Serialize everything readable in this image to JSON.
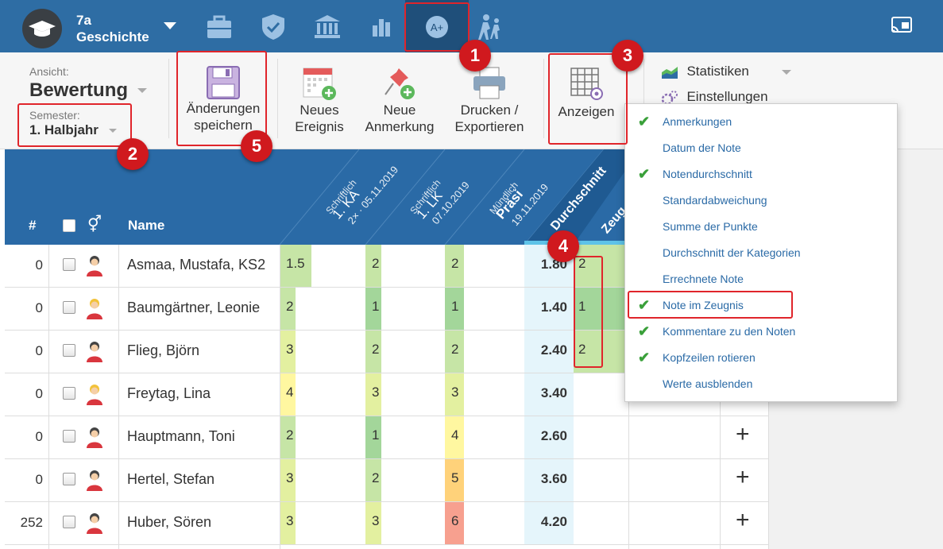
{
  "app": {
    "class_code": "7a",
    "subject": "Geschichte"
  },
  "nav_icons": [
    "briefcase-icon",
    "shield-icon",
    "bank-icon",
    "bar-chart-icon",
    "grade-icon",
    "walking-people-icon",
    "cast-icon"
  ],
  "toolbar": {
    "view_label": "Ansicht:",
    "view_value": "Bewertung",
    "semester_label": "Semester:",
    "semester_value": "1. Halbjahr",
    "save_line1": "Änderungen",
    "save_line2": "speichern",
    "new_event_line1": "Neues",
    "new_event_line2": "Ereignis",
    "new_note_line1": "Neue",
    "new_note_line2": "Anmerkung",
    "print_line1": "Drucken /",
    "print_line2": "Exportieren",
    "show_label": "Anzeigen",
    "statistics_label": "Statistiken",
    "settings_label": "Einstellungen"
  },
  "table": {
    "header": {
      "hash": "#",
      "gender": "⚥",
      "name": "Name",
      "col1_type": "Schriftlich",
      "col1_title": "1. KA",
      "col1_sub": "2× · 05.11.2019",
      "col2_type": "Schriftlich",
      "col2_title": "1. LK",
      "col2_sub": "07.10.2019",
      "col3_type": "Mündlich",
      "col3_title": "Präsi",
      "col3_sub": "19.11.2019",
      "avg": "Durchschnitt",
      "zeugnis": "Zeug"
    },
    "rows": [
      {
        "num": "0",
        "name": "Asmaa, Mustafa, KS2",
        "g1": "1.5",
        "g2": "2",
        "g3": "2",
        "avg": "1.80",
        "zeugnis": "2",
        "gender": "male"
      },
      {
        "num": "0",
        "name": "Baumgärtner, Leonie",
        "g1": "2",
        "g2": "1",
        "g3": "1",
        "avg": "1.40",
        "zeugnis": "1",
        "gender": "female"
      },
      {
        "num": "0",
        "name": "Flieg, Björn",
        "g1": "3",
        "g2": "2",
        "g3": "2",
        "avg": "2.40",
        "zeugnis": "2",
        "gender": "male"
      },
      {
        "num": "0",
        "name": "Freytag, Lina",
        "g1": "4",
        "g2": "3",
        "g3": "3",
        "avg": "3.40",
        "zeugnis": "",
        "gender": "female"
      },
      {
        "num": "0",
        "name": "Hauptmann, Toni",
        "g1": "2",
        "g2": "1",
        "g3": "4",
        "avg": "2.60",
        "zeugnis": "",
        "gender": "male"
      },
      {
        "num": "0",
        "name": "Hertel, Stefan",
        "g1": "3",
        "g2": "2",
        "g3": "5",
        "avg": "3.60",
        "zeugnis": "",
        "gender": "male"
      },
      {
        "num": "252",
        "name": "Huber, Sören",
        "g1": "3",
        "g2": "3",
        "g3": "6",
        "avg": "4.20",
        "zeugnis": "",
        "gender": "male"
      }
    ],
    "add_symbol": "+"
  },
  "dropdown": {
    "items": [
      {
        "label": "Anmerkungen",
        "checked": true
      },
      {
        "label": "Datum der Note",
        "checked": false
      },
      {
        "label": "Notendurchschnitt",
        "checked": true
      },
      {
        "label": "Standardabweichung",
        "checked": false
      },
      {
        "label": "Summe der Punkte",
        "checked": false
      },
      {
        "label": "Durchschnitt der Kategorien",
        "checked": false
      },
      {
        "label": "Errechnete Note",
        "checked": false
      },
      {
        "label": "Note im Zeugnis",
        "checked": true
      },
      {
        "label": "Kommentare zu den Noten",
        "checked": true
      },
      {
        "label": "Kopfzeilen rotieren",
        "checked": true
      },
      {
        "label": "Werte ausblenden",
        "checked": false
      }
    ],
    "check_symbol": "✔"
  },
  "badges": [
    "1",
    "2",
    "3",
    "4",
    "5"
  ],
  "colors": {
    "topbar": "#2e6da4",
    "grade_1": "#a3d69a",
    "grade_2": "#c6e5a6",
    "grade_3": "#e3f0a0",
    "grade_4": "#fff7a0",
    "grade_5": "#ffd27a",
    "grade_6": "#f7a08f",
    "badge": "#d0191e"
  }
}
